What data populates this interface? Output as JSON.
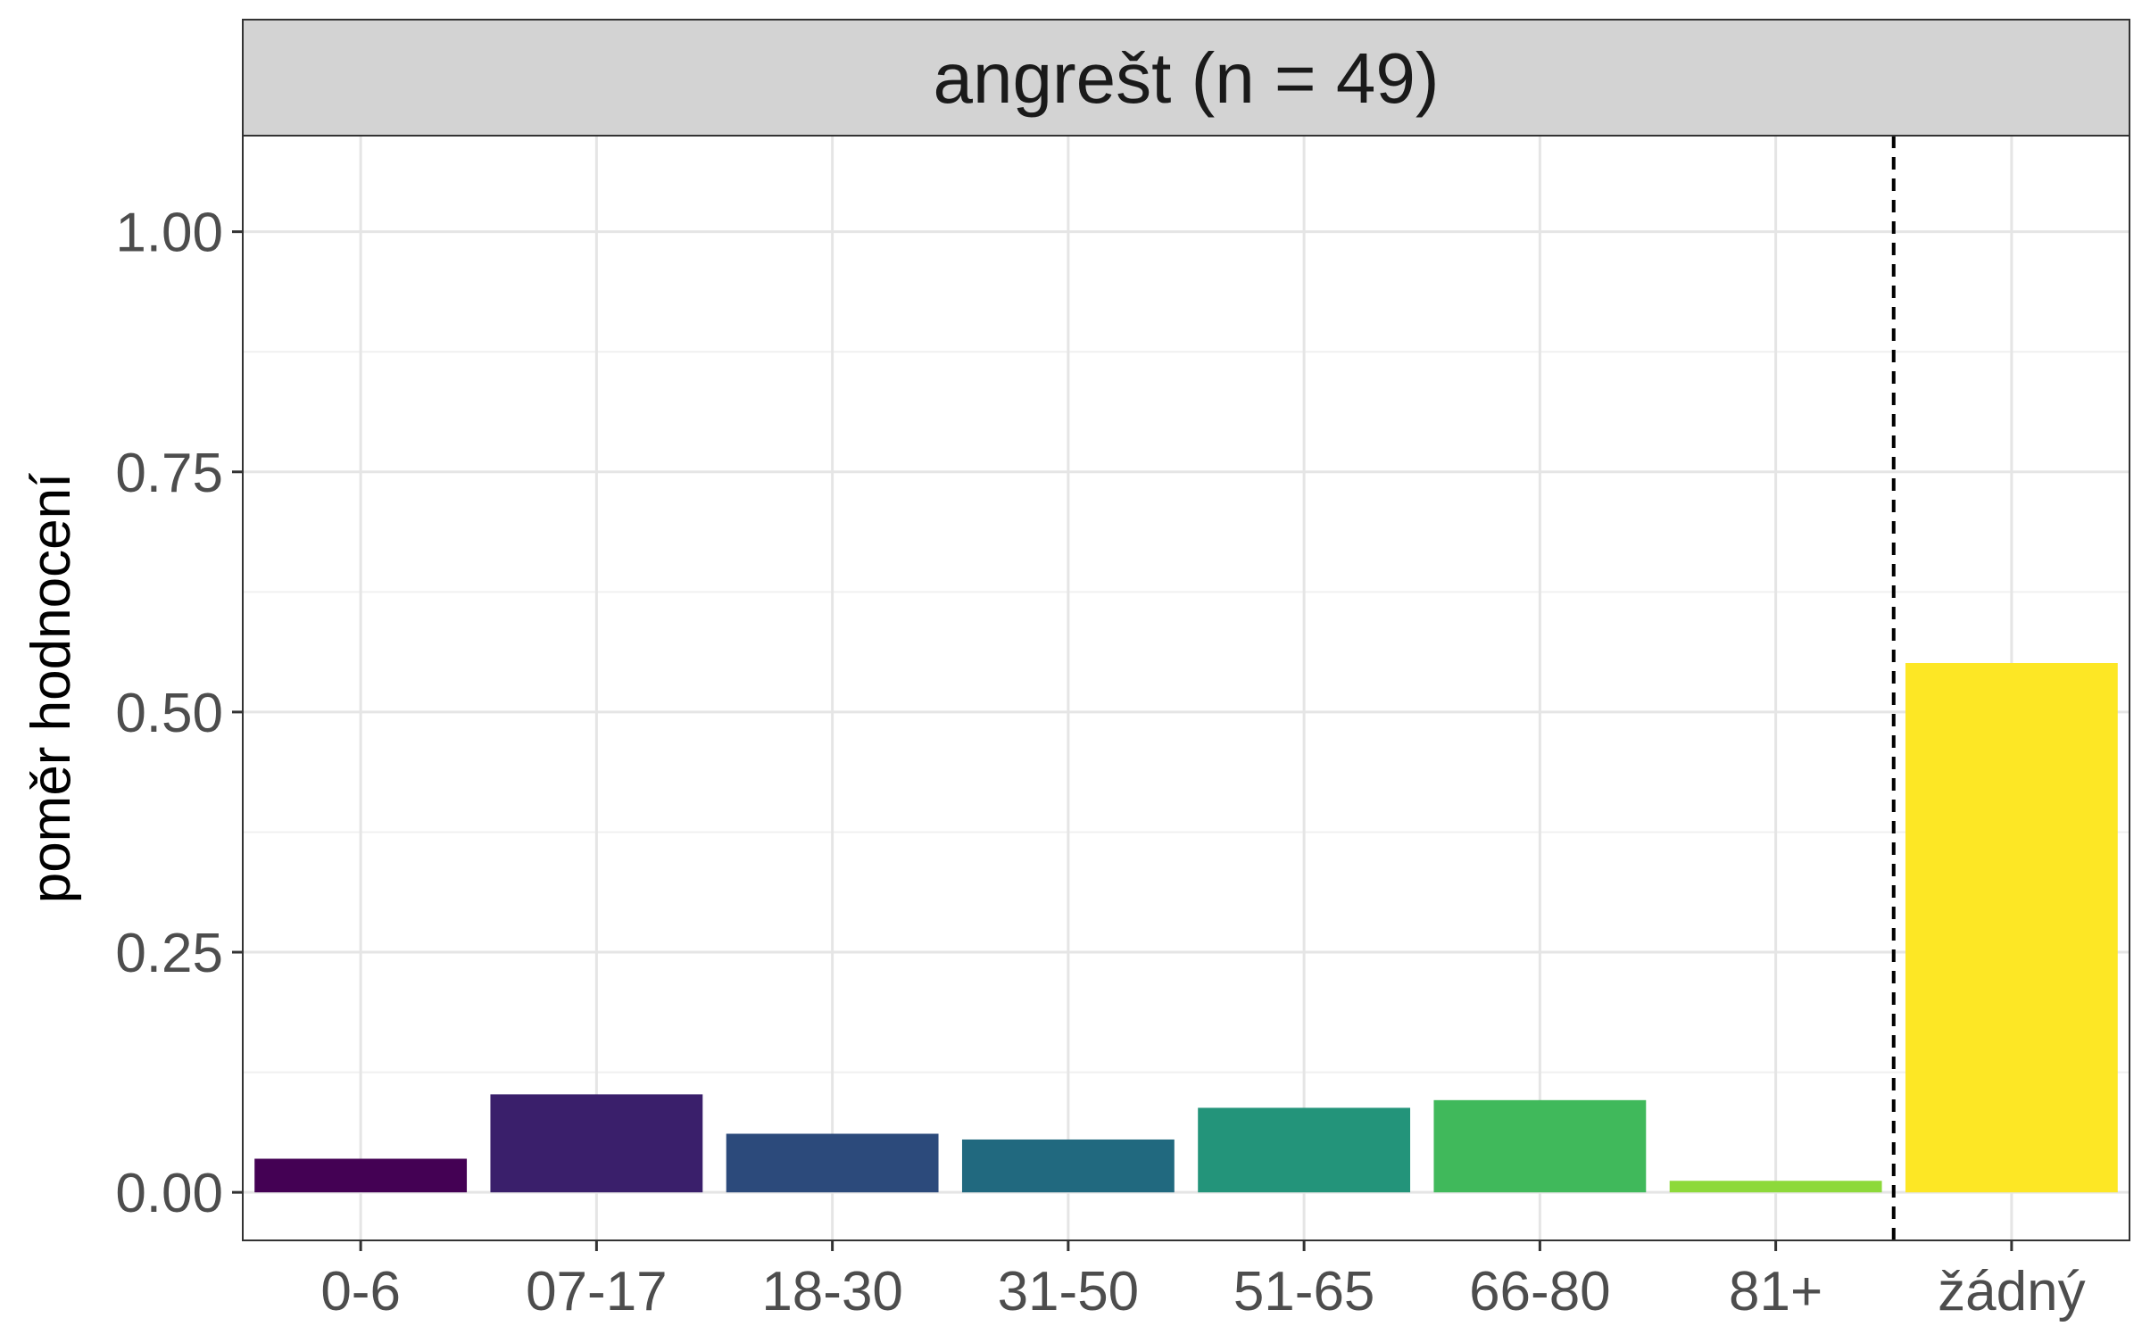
{
  "chart_data": {
    "type": "bar",
    "facet_title": "angrešt (n = 49)",
    "ylabel": "poměr hodnocení",
    "xlabel": "",
    "categories": [
      "0-6",
      "07-17",
      "18-30",
      "31-50",
      "51-65",
      "66-80",
      "81+",
      "žádný"
    ],
    "values": [
      0.035,
      0.102,
      0.061,
      0.055,
      0.088,
      0.096,
      0.012,
      0.551
    ],
    "colors": [
      "#440154",
      "#3A1F6B",
      "#2C4A7B",
      "#21697F",
      "#23947A",
      "#40B95B",
      "#8DD93A",
      "#FDE725"
    ],
    "ylim": [
      -0.05,
      1.1
    ],
    "yticks": [
      0,
      0.25,
      0.5,
      0.75,
      1
    ],
    "ytick_labels": [
      "0.00",
      "0.25",
      "0.50",
      "0.75",
      "1.00"
    ],
    "grid": true,
    "reference_line": {
      "between": [
        "81+",
        "žádný"
      ],
      "style": "dashed"
    }
  }
}
